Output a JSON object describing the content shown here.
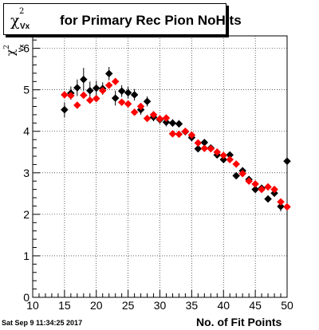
{
  "title": {
    "symbol": "χ",
    "sup": "2",
    "sub": "Vx",
    "rest": "for Primary Rec Pion NoHits"
  },
  "ylabel": {
    "symbol": "χ",
    "sup": "2",
    "sub": "Vx"
  },
  "xlabel": "No. of Fit Points",
  "timestamp": "Sat Sep  9 11:34:25 2017",
  "chart_data": {
    "type": "scatter",
    "title": "χ²Vx for Primary Rec Pion NoHits",
    "xlabel": "No. of Fit Points",
    "ylabel": "χ²Vx",
    "xlim": [
      10,
      50
    ],
    "ylim": [
      0,
      6.3
    ],
    "xticks": [
      10,
      15,
      20,
      25,
      30,
      35,
      40,
      45,
      50
    ],
    "yticks": [
      0,
      1,
      2,
      3,
      4,
      5,
      6
    ],
    "grid": true,
    "series": [
      {
        "color": "#000000",
        "x": [
          15,
          16,
          17,
          18,
          19,
          20,
          21,
          22,
          23,
          24,
          25,
          26,
          27,
          28,
          29,
          30,
          31,
          32,
          33,
          34,
          35,
          36,
          37,
          38,
          39,
          40,
          41,
          42,
          43,
          44,
          45,
          46,
          47,
          48,
          49,
          50
        ],
        "y": [
          4.52,
          4.92,
          5.05,
          5.25,
          4.98,
          5.04,
          5.03,
          5.39,
          4.8,
          4.97,
          4.93,
          4.88,
          4.52,
          4.72,
          4.34,
          4.28,
          4.22,
          4.2,
          4.18,
          3.99,
          3.85,
          3.58,
          3.73,
          3.6,
          3.43,
          3.32,
          3.43,
          2.93,
          3.05,
          2.84,
          2.6,
          2.63,
          2.37,
          2.51,
          2.19,
          3.28
        ],
        "err": [
          0.18,
          0.16,
          0.2,
          0.28,
          0.22,
          0.18,
          0.15,
          0.16,
          0.18,
          0.14,
          0.14,
          0.14,
          0.12,
          0.12,
          0.1,
          0.1,
          0.1,
          0.09,
          0.09,
          0.08,
          0.08,
          0.08,
          0.07,
          0.07,
          0.07,
          0.07,
          0.07,
          0.07,
          0.07,
          0.07,
          0.08,
          0.08,
          0.08,
          0.09,
          0.12,
          0.55
        ]
      },
      {
        "color": "#ff0000",
        "x": [
          15,
          16,
          17,
          18,
          19,
          20,
          21,
          22,
          23,
          24,
          25,
          26,
          27,
          28,
          29,
          30,
          31,
          32,
          33,
          34,
          35,
          36,
          37,
          38,
          39,
          40,
          41,
          42,
          43,
          44,
          45,
          46,
          47,
          48,
          49,
          50
        ],
        "y": [
          4.88,
          4.86,
          4.63,
          4.87,
          4.75,
          4.79,
          4.98,
          5.11,
          5.2,
          4.7,
          4.66,
          4.46,
          4.6,
          4.31,
          4.4,
          4.3,
          4.32,
          3.94,
          3.93,
          4.0,
          3.91,
          3.72,
          3.59,
          3.58,
          3.5,
          3.42,
          3.32,
          3.21,
          2.98,
          2.8,
          2.73,
          2.6,
          2.66,
          2.6,
          2.3,
          2.18
        ]
      }
    ]
  }
}
